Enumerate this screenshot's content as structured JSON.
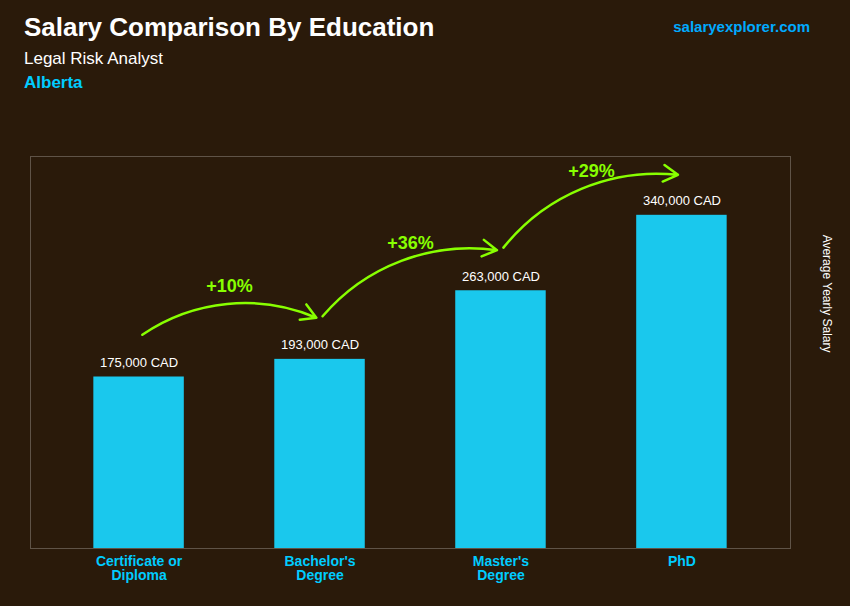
{
  "chart_data": {
    "type": "bar",
    "title": "Salary Comparison By Education",
    "subtitle": "Legal Risk Analyst",
    "location": "Alberta",
    "watermark": "salaryexplorer.com",
    "ylabel": "Average Yearly Salary",
    "categories": [
      "Certificate or\nDiploma",
      "Bachelor's\nDegree",
      "Master's\nDegree",
      "PhD"
    ],
    "values": [
      175000,
      193000,
      263000,
      340000
    ],
    "value_labels": [
      "175,000 CAD",
      "193,000 CAD",
      "263,000 CAD",
      "340,000 CAD"
    ],
    "data_labels": true,
    "change_labels": [
      "+10%",
      "+36%",
      "+29%"
    ],
    "color": "#1ac8ed",
    "ylim": [
      0,
      400000
    ],
    "tick_labels": "x",
    "grid": false
  }
}
